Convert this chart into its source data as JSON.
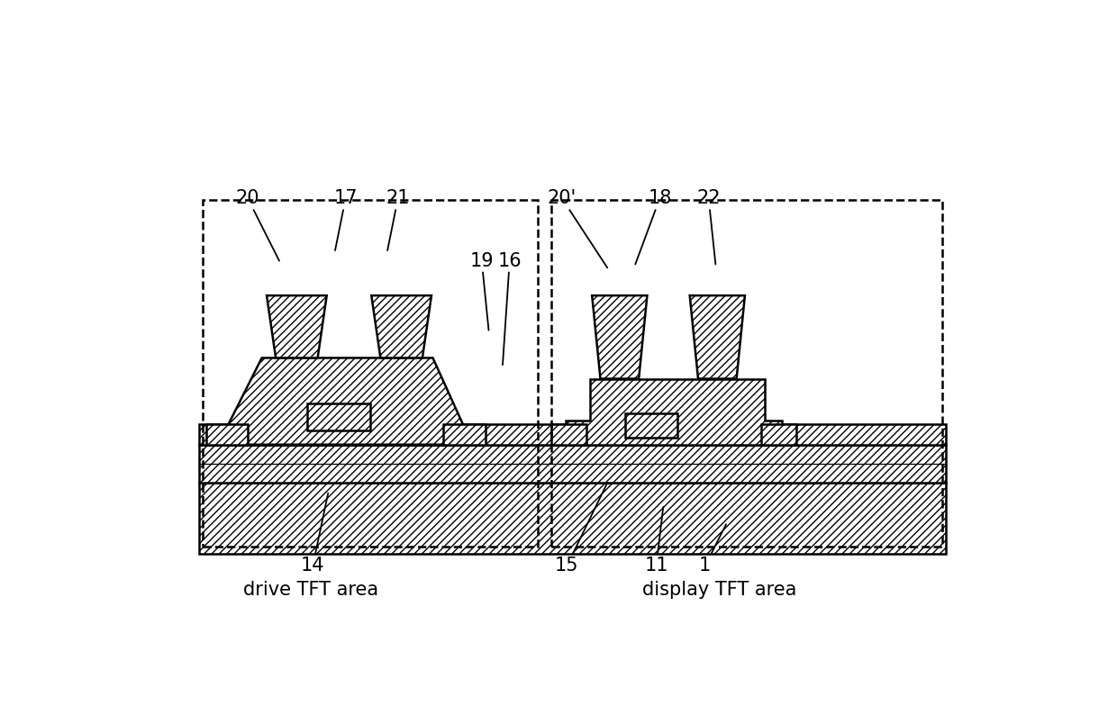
{
  "background_color": "#ffffff",
  "line_color": "#000000",
  "fig_width": 12.4,
  "fig_height": 7.84,
  "drive_label": "drive TFT area",
  "display_label": "display TFT area",
  "label_fontsize": 15,
  "annotation_fontsize": 15
}
